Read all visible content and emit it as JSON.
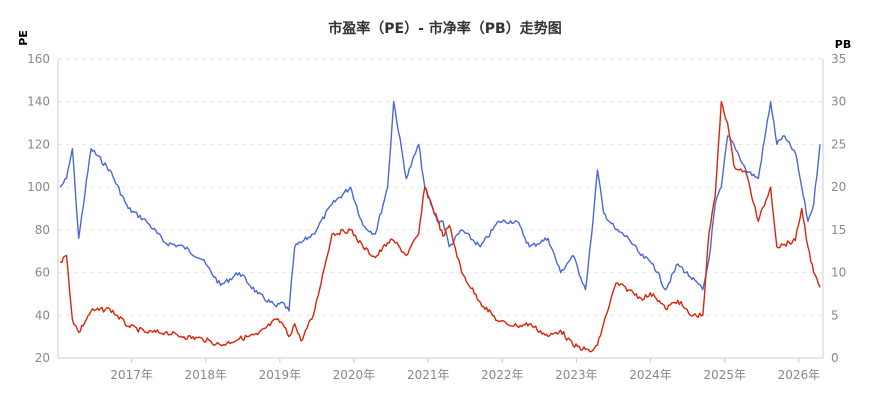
{
  "chart_data": {
    "type": "line",
    "title": "市盈率（PE）- 市净率（PB）走势图",
    "x_ticks": [
      "2017年",
      "2018年",
      "2019年",
      "2020年",
      "2021年",
      "2022年",
      "2023年",
      "2024年",
      "2025年",
      "2026年"
    ],
    "x_range": [
      "2016-01-04",
      "2026-04-30"
    ],
    "y_left": {
      "label": "PE",
      "ylim": [
        20,
        160
      ],
      "ticks": [
        20,
        40,
        60,
        80,
        100,
        120,
        140,
        160
      ],
      "color": "#d9250b"
    },
    "y_right": {
      "label": "PB",
      "ylim": [
        0,
        35
      ],
      "ticks": [
        0,
        5,
        10,
        15,
        20,
        25,
        30,
        35
      ],
      "color": "#4a68d9"
    },
    "grid": true,
    "series": [
      {
        "name": "PE",
        "axis": "left",
        "color": "#d9250b",
        "x": [
          "2016-01",
          "2016-02",
          "2016-03",
          "2016-04",
          "2016-06",
          "2016-09",
          "2016-12",
          "2017-03",
          "2017-06",
          "2017-09",
          "2017-12",
          "2018-03",
          "2018-06",
          "2018-09",
          "2018-12",
          "2019-01",
          "2019-02",
          "2019-03",
          "2019-04",
          "2019-06",
          "2019-09",
          "2019-12",
          "2020-02",
          "2020-04",
          "2020-06",
          "2020-07",
          "2020-09",
          "2020-11",
          "2020-12",
          "2021-02",
          "2021-03",
          "2021-04",
          "2021-06",
          "2021-09",
          "2021-12",
          "2022-03",
          "2022-05",
          "2022-08",
          "2022-10",
          "2022-12",
          "2023-02",
          "2023-03",
          "2023-04",
          "2023-05",
          "2023-07",
          "2023-09",
          "2023-11",
          "2024-01",
          "2024-03",
          "2024-05",
          "2024-07",
          "2024-09",
          "2024-10",
          "2024-11",
          "2024-12",
          "2025-01",
          "2025-02",
          "2025-04",
          "2025-06",
          "2025-08",
          "2025-09",
          "2025-10",
          "2025-12",
          "2026-01",
          "2026-02",
          "2026-03",
          "2026-04"
        ],
        "values": [
          65,
          68,
          38,
          32,
          42,
          43,
          35,
          32,
          32,
          30,
          29,
          26,
          29,
          31,
          38,
          36,
          30,
          36,
          28,
          40,
          78,
          80,
          72,
          67,
          74,
          75,
          68,
          78,
          100,
          85,
          77,
          82,
          60,
          46,
          37,
          35,
          36,
          30,
          33,
          26,
          24,
          23,
          26,
          36,
          55,
          52,
          48,
          50,
          43,
          47,
          40,
          40,
          78,
          96,
          140,
          130,
          110,
          107,
          84,
          100,
          72,
          73,
          75,
          90,
          72,
          60,
          53
        ]
      },
      {
        "name": "PB",
        "axis": "right",
        "color": "#4a68d9",
        "x": [
          "2016-01",
          "2016-02",
          "2016-03",
          "2016-04",
          "2016-06",
          "2016-09",
          "2016-12",
          "2017-03",
          "2017-06",
          "2017-09",
          "2017-12",
          "2018-03",
          "2018-06",
          "2018-09",
          "2018-12",
          "2019-01",
          "2019-02",
          "2019-03",
          "2019-04",
          "2019-06",
          "2019-09",
          "2019-12",
          "2020-02",
          "2020-04",
          "2020-06",
          "2020-07",
          "2020-09",
          "2020-11",
          "2020-12",
          "2021-02",
          "2021-03",
          "2021-04",
          "2021-06",
          "2021-09",
          "2021-12",
          "2022-03",
          "2022-05",
          "2022-08",
          "2022-10",
          "2022-12",
          "2023-02",
          "2023-03",
          "2023-04",
          "2023-05",
          "2023-07",
          "2023-09",
          "2023-11",
          "2024-01",
          "2024-03",
          "2024-05",
          "2024-07",
          "2024-09",
          "2024-10",
          "2024-11",
          "2024-12",
          "2025-01",
          "2025-02",
          "2025-04",
          "2025-06",
          "2025-08",
          "2025-09",
          "2025-10",
          "2025-12",
          "2026-01",
          "2026-02",
          "2026-03",
          "2026-04"
        ],
        "values": [
          20,
          21,
          24.5,
          14,
          24.5,
          22,
          17.5,
          16,
          13.5,
          13,
          11.5,
          8.5,
          10,
          7.5,
          6,
          6.5,
          5.5,
          13,
          13.5,
          14.5,
          18,
          20,
          15.5,
          14.5,
          20,
          30,
          21,
          25,
          20,
          16,
          16,
          13,
          15,
          13,
          16,
          16,
          13,
          14,
          10,
          12,
          8,
          14,
          22,
          17,
          15,
          14,
          12,
          11,
          8,
          11,
          9.5,
          8,
          11.5,
          18,
          20,
          26,
          25,
          22,
          21,
          30,
          25,
          26,
          24,
          20,
          16,
          18,
          25
        ]
      }
    ]
  }
}
